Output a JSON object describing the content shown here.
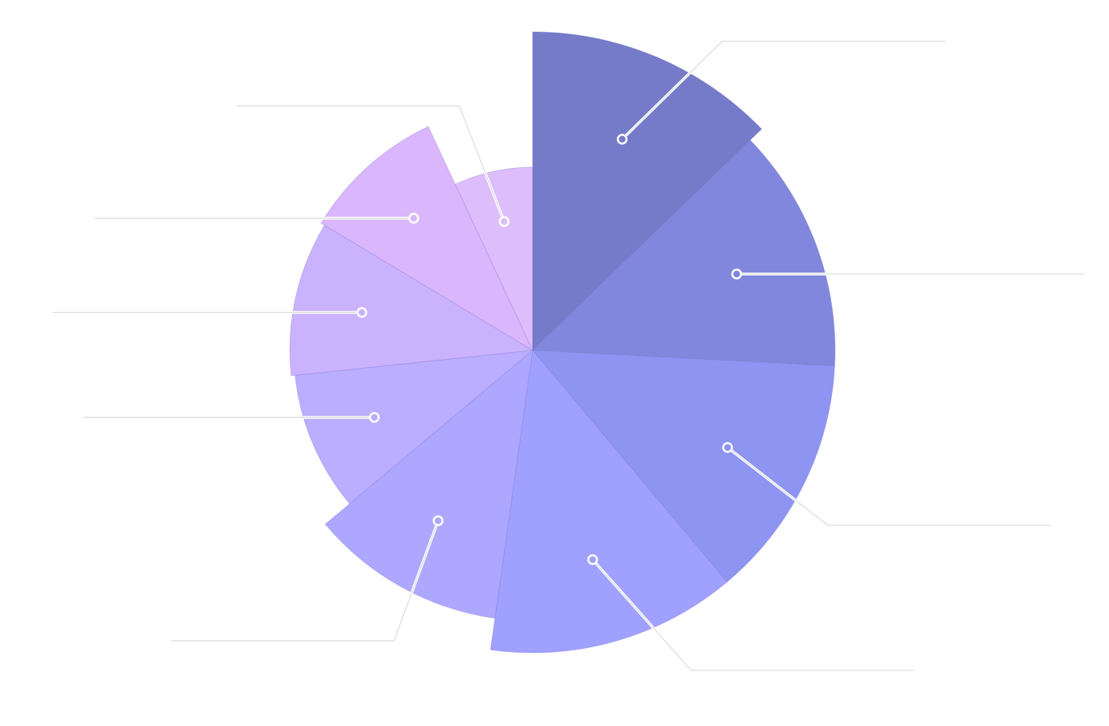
{
  "chart_data": {
    "type": "pie",
    "variant": "rose",
    "legend": "none",
    "labels_visible": false,
    "radial_max": 400,
    "slices": [
      {
        "angle_deg": 46,
        "radius": 400,
        "color": "#757bc8"
      },
      {
        "angle_deg": 47,
        "radius": 380,
        "color": "#8187dc"
      },
      {
        "angle_deg": 47,
        "radius": 380,
        "color": "#8e94f2"
      },
      {
        "angle_deg": 48,
        "radius": 380,
        "color": "#9fa0ff"
      },
      {
        "angle_deg": 42,
        "radius": 340,
        "color": "#ada7ff"
      },
      {
        "angle_deg": 34,
        "radius": 300,
        "color": "#bbadff"
      },
      {
        "angle_deg": 37,
        "radius": 305,
        "color": "#cbb2fe"
      },
      {
        "angle_deg": 34,
        "radius": 310,
        "color": "#dab6fc"
      },
      {
        "angle_deg": 25,
        "radius": 230,
        "color": "#ddbdfc"
      }
    ],
    "leader_line_color": "#dcdcdc"
  }
}
